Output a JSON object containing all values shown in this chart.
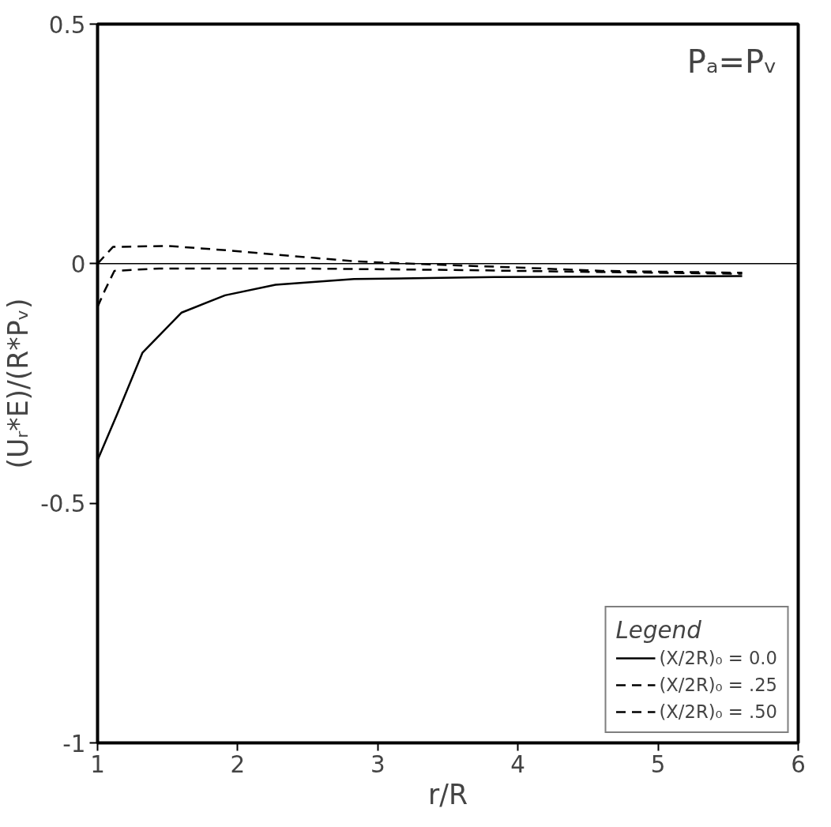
{
  "chart_data": {
    "type": "line",
    "xlabel": "r/R",
    "ylabel": "(Uᵣ*E)/(R*Pᵥ)",
    "legend_title": "Legend",
    "annotations": [
      "Pₐ=Pᵥ"
    ],
    "xlim": [
      1,
      6
    ],
    "ylim": [
      -1,
      0.5
    ],
    "xticks": [
      1,
      2,
      3,
      4,
      5,
      6
    ],
    "yticks": [
      -1,
      -0.5,
      0,
      0.5
    ],
    "grid": false,
    "legend": "bottom right",
    "ref_lines": [
      {
        "axis": "y",
        "value": 0,
        "color": "#000000",
        "line_style": "solid"
      }
    ],
    "series": [
      {
        "name": "(X/2R)₀ = 0.0",
        "color": "#000000",
        "line_style": "solid",
        "x": [
          1.0,
          1.14,
          1.32,
          1.6,
          1.91,
          2.27,
          2.83,
          3.83,
          4.8,
          5.6
        ],
        "values": [
          -0.41,
          -0.314,
          -0.186,
          -0.102,
          -0.066,
          -0.044,
          -0.032,
          -0.028,
          -0.027,
          -0.026
        ]
      },
      {
        "name": "(X/2R)₀ = .25",
        "color": "#000000",
        "line_style": "dashed",
        "x": [
          1.0,
          1.05,
          1.12,
          1.44,
          2.44,
          3.5,
          4.5,
          5.6
        ],
        "values": [
          -0.09,
          -0.057,
          -0.015,
          -0.01,
          -0.01,
          -0.013,
          -0.017,
          -0.021
        ]
      },
      {
        "name": "(X/2R)₀ = .50",
        "color": "#000000",
        "line_style": "dashed",
        "x": [
          1.0,
          1.11,
          1.51,
          1.96,
          2.55,
          2.83,
          3.23,
          4.0,
          4.6,
          5.6
        ],
        "values": [
          0,
          0.035,
          0.037,
          0.027,
          0.012,
          0.005,
          0,
          -0.008,
          -0.015,
          -0.019
        ]
      }
    ]
  }
}
